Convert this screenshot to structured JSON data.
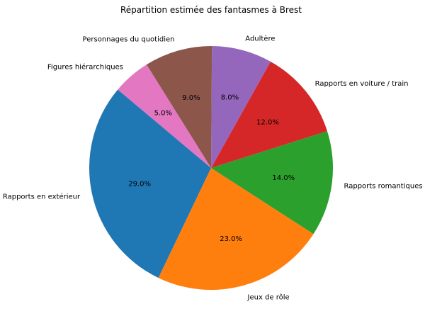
{
  "chart_data": {
    "type": "pie",
    "title": "Répartition estimée des fantasmes à Brest",
    "xlabel": "",
    "ylabel": "",
    "start_angle_deg": 140,
    "direction": "counterclockwise",
    "autopct_format": "%.1f%%",
    "categories": [
      "Rapports en extérieur",
      "Jeux de rôle",
      "Rapports romantiques",
      "Rapports en voiture / train",
      "Adultère",
      "Personnages du quotidien",
      "Figures hiérarchiques"
    ],
    "values": [
      29,
      23,
      14,
      12,
      8,
      9,
      5
    ],
    "percent_labels": [
      "29.0%",
      "23.0%",
      "14.0%",
      "12.0%",
      "8.0%",
      "9.0%",
      "5.0%"
    ],
    "colors": [
      "#1f77b4",
      "#ff7f0e",
      "#2ca02c",
      "#d62728",
      "#9467bd",
      "#8c564b",
      "#e377c2"
    ],
    "legend": null,
    "grid": false
  }
}
